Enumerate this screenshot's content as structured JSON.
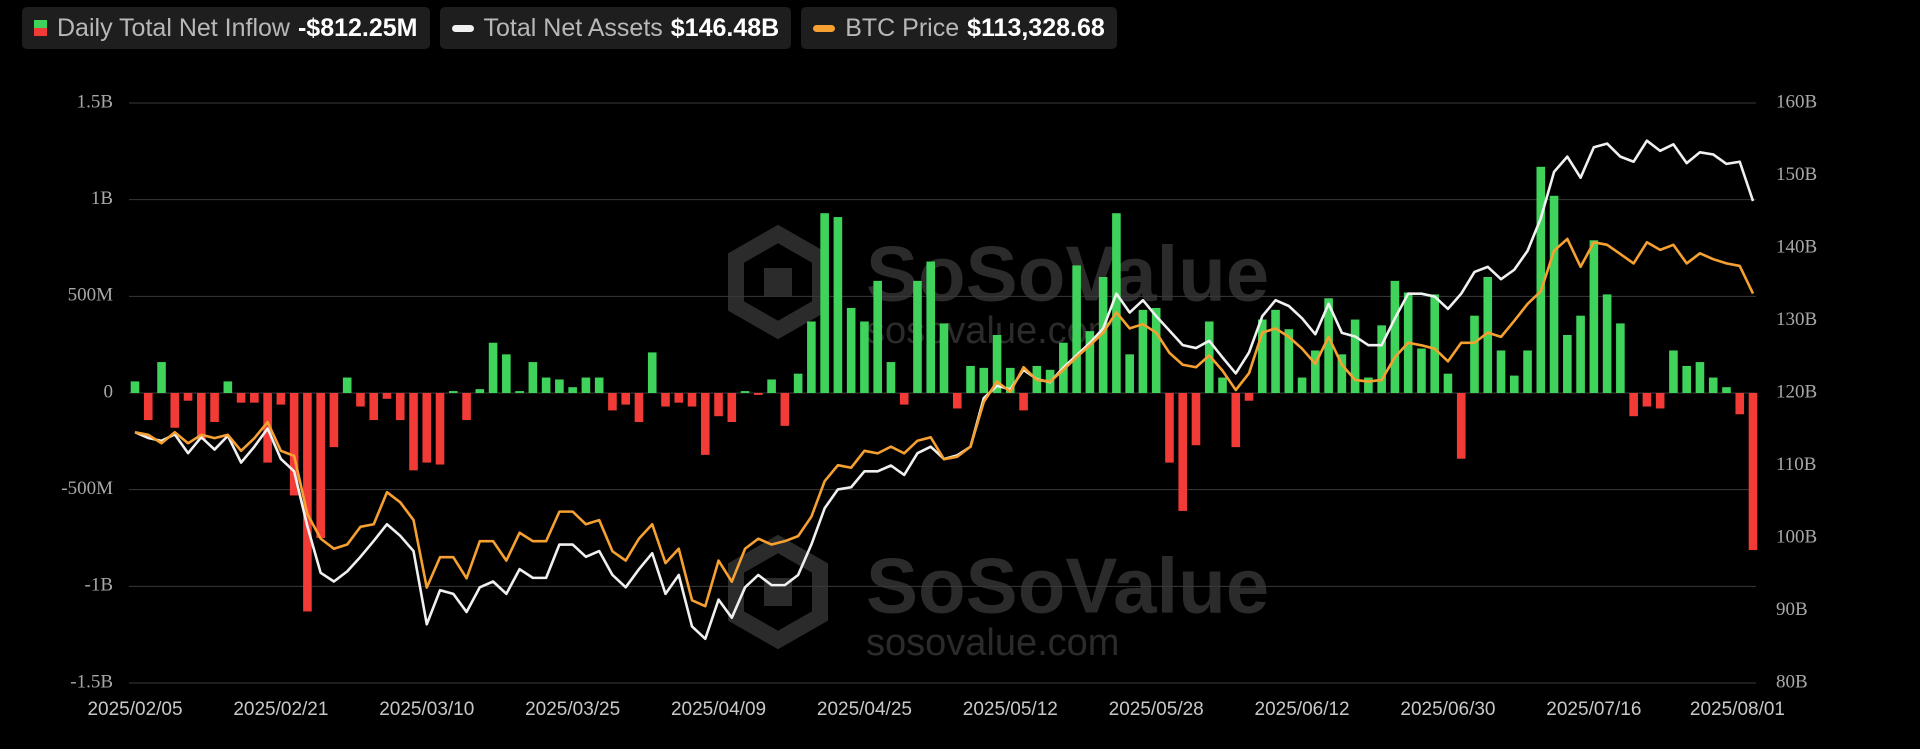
{
  "chart_data": {
    "type": "bar",
    "watermark": {
      "brand": "SoSoValue",
      "url": "sosovalue.com"
    },
    "categories": [
      "2025/02/05",
      null,
      null,
      null,
      null,
      null,
      null,
      null,
      null,
      null,
      null,
      "2025/02/21",
      null,
      null,
      null,
      null,
      null,
      null,
      null,
      null,
      null,
      null,
      "2025/03/10",
      null,
      null,
      null,
      null,
      null,
      null,
      null,
      null,
      null,
      null,
      "2025/03/25",
      null,
      null,
      null,
      null,
      null,
      null,
      null,
      null,
      null,
      null,
      "2025/04/09",
      null,
      null,
      null,
      null,
      null,
      null,
      null,
      null,
      null,
      null,
      "2025/04/25",
      null,
      null,
      null,
      null,
      null,
      null,
      null,
      null,
      null,
      null,
      "2025/05/12",
      null,
      null,
      null,
      null,
      null,
      null,
      null,
      null,
      null,
      null,
      "2025/05/28",
      null,
      null,
      null,
      null,
      null,
      null,
      null,
      null,
      null,
      null,
      "2025/06/12",
      null,
      null,
      null,
      null,
      null,
      null,
      null,
      null,
      null,
      null,
      "2025/06/30",
      null,
      null,
      null,
      null,
      null,
      null,
      null,
      null,
      null,
      null,
      "2025/07/16",
      null,
      null,
      null,
      null,
      null,
      null,
      null,
      null,
      null,
      null,
      null,
      "2025/08/01"
    ],
    "series": [
      {
        "name": "Daily Total Net Inflow",
        "type": "bar",
        "color": "#3fd35b",
        "negative_color": "#f23b36",
        "value_label": "-$812.25M",
        "values": [
          60000000.0,
          -140000000.0,
          160000000.0,
          -180000000.0,
          -40000000.0,
          -240000000.0,
          -150000000.0,
          60000000.0,
          -50000000.0,
          -50000000.0,
          -360000000.0,
          -60000000.0,
          -530000000.0,
          -1130000000.0,
          -750000000.0,
          -280000000.0,
          80000000.0,
          -70000000.0,
          -140000000.0,
          -30000000.0,
          -140000000.0,
          -400000000.0,
          -360000000.0,
          -370000000.0,
          10000000.0,
          -140000000.0,
          20000000.0,
          260000000.0,
          200000000.0,
          10000000.0,
          160000000.0,
          80000000.0,
          70000000.0,
          30000000.0,
          80000000.0,
          80000000.0,
          -90000000.0,
          -60000000.0,
          -150000000.0,
          210000000.0,
          -70000000.0,
          -50000000.0,
          -70000000.0,
          -320000000.0,
          -120000000.0,
          -150000000.0,
          10000000.0,
          -10000000.0,
          70000000.0,
          -170000000.0,
          100000000.0,
          370000000.0,
          930000000.0,
          910000000.0,
          440000000.0,
          370000000.0,
          580000000.0,
          160000000.0,
          -60000000.0,
          580000000.0,
          680000000.0,
          360000000.0,
          -80000000.0,
          140000000.0,
          130000000.0,
          300000000.0,
          130000000.0,
          -90000000.0,
          140000000.0,
          120000000.0,
          260000000.0,
          660000000.0,
          320000000.0,
          600000000.0,
          930000000.0,
          200000000.0,
          430000000.0,
          440000000.0,
          -360000000.0,
          -610000000.0,
          -270000000.0,
          370000000.0,
          80000000.0,
          -280000000.0,
          -40000000.0,
          380000000.0,
          430000000.0,
          330000000.0,
          80000000.0,
          220000000.0,
          490000000.0,
          200000000.0,
          380000000.0,
          80000000.0,
          350000000.0,
          580000000.0,
          520000000.0,
          230000000.0,
          510000000.0,
          100000000.0,
          -340000000.0,
          400000000.0,
          600000000.0,
          220000000.0,
          90000000.0,
          220000000.0,
          1170000000.0,
          1020000000.0,
          300000000.0,
          400000000.0,
          790000000.0,
          510000000.0,
          360000000.0,
          -120000000.0,
          -70000000.0,
          -80000000.0,
          220000000.0,
          140000000.0,
          160000000.0,
          80000000.0,
          30000000.0,
          -110000000.0,
          -812250000.0
        ]
      },
      {
        "name": "Total Net Assets",
        "type": "line",
        "axis": "y2",
        "color": "#f0f0f0",
        "value_label": "$146.48B",
        "values": [
          114.6,
          113.8,
          113.4,
          114.3,
          111.7,
          113.9,
          112.2,
          114.1,
          110.4,
          112.6,
          115.1,
          110.9,
          109.2,
          101.6,
          95.2,
          94.0,
          95.4,
          97.4,
          99.6,
          101.9,
          100.3,
          98.2,
          88.1,
          92.8,
          92.3,
          89.8,
          93.2,
          94.0,
          92.3,
          95.7,
          94.5,
          94.5,
          99.1,
          99.1,
          97.4,
          98.2,
          94.9,
          93.2,
          95.7,
          97.9,
          92.3,
          94.9,
          87.8,
          86.1,
          91.5,
          89.0,
          93.2,
          94.9,
          93.5,
          93.5,
          94.9,
          99.1,
          104.1,
          106.7,
          107.0,
          109.2,
          109.2,
          110.0,
          108.7,
          111.7,
          112.6,
          110.9,
          111.4,
          112.6,
          119.3,
          121.0,
          120.5,
          123.2,
          121.9,
          121.5,
          123.5,
          125.2,
          126.9,
          128.9,
          133.7,
          131.1,
          132.8,
          130.6,
          128.6,
          126.6,
          126.2,
          127.2,
          124.9,
          122.7,
          125.6,
          130.6,
          132.8,
          132.0,
          130.3,
          128.1,
          132.3,
          128.3,
          127.8,
          126.6,
          126.6,
          130.3,
          133.7,
          133.7,
          133.3,
          131.6,
          133.7,
          136.7,
          137.4,
          135.7,
          137.0,
          139.6,
          144.1,
          150.5,
          152.6,
          149.7,
          153.9,
          154.4,
          152.6,
          151.9,
          154.8,
          153.4,
          154.3,
          151.7,
          153.2,
          152.9,
          151.6,
          151.9,
          146.48
        ]
      },
      {
        "name": "BTC Price",
        "type": "line",
        "axis": "y3",
        "color": "#f5a030",
        "value_label": "$113,328.68",
        "values": [
          96900,
          96600,
          95600,
          96900,
          95600,
          96600,
          96200,
          96600,
          94700,
          96200,
          98100,
          94700,
          94100,
          87200,
          84300,
          83100,
          83600,
          85700,
          86000,
          89800,
          88600,
          86500,
          78500,
          82100,
          82100,
          79600,
          84000,
          84000,
          81700,
          85000,
          84000,
          84000,
          87500,
          87500,
          86000,
          86500,
          82800,
          81700,
          84300,
          86000,
          81400,
          83100,
          77000,
          76300,
          81700,
          79200,
          83100,
          84300,
          83600,
          84000,
          84600,
          86900,
          91100,
          93000,
          92700,
          94700,
          94400,
          95200,
          94400,
          95900,
          96300,
          93700,
          94000,
          95200,
          100500,
          102900,
          101700,
          104600,
          103100,
          102900,
          104300,
          105800,
          107200,
          108700,
          111100,
          109200,
          109700,
          108700,
          106300,
          104900,
          104600,
          106000,
          104200,
          101900,
          103900,
          108700,
          109200,
          108200,
          106800,
          105000,
          108200,
          104900,
          103100,
          102900,
          103100,
          105800,
          107500,
          107200,
          106800,
          105300,
          107500,
          107500,
          108700,
          108200,
          110100,
          112100,
          113600,
          118400,
          119800,
          116500,
          119400,
          119100,
          118000,
          116900,
          119400,
          118500,
          119100,
          116900,
          118100,
          117400,
          116900,
          116600,
          113328.68
        ]
      }
    ],
    "ylim": [
      -1500000000.0,
      1500000000.0
    ],
    "yticks": [
      {
        "value": -1500000000.0,
        "label": "-1.5B"
      },
      {
        "value": -1000000000.0,
        "label": "-1B"
      },
      {
        "value": -500000000.0,
        "label": "-500M"
      },
      0,
      {
        "value": 500000000.0,
        "label": "500M"
      },
      {
        "value": 1000000000.0,
        "label": "1B"
      },
      {
        "value": 1500000000.0,
        "label": "1.5B"
      }
    ],
    "y2lim": [
      80,
      160
    ],
    "y2ticks": [
      {
        "value": 80,
        "label": "80B"
      },
      {
        "value": 90,
        "label": "90B"
      },
      {
        "value": 100,
        "label": "100B"
      },
      {
        "value": 110,
        "label": "110B"
      },
      {
        "value": 120,
        "label": "120B"
      },
      {
        "value": 130,
        "label": "130B"
      },
      {
        "value": 140,
        "label": "140B"
      },
      {
        "value": 150,
        "label": "150B"
      },
      {
        "value": 160,
        "label": "160B"
      }
    ],
    "y3lim": [
      67200,
      135900
    ],
    "grid": true
  }
}
